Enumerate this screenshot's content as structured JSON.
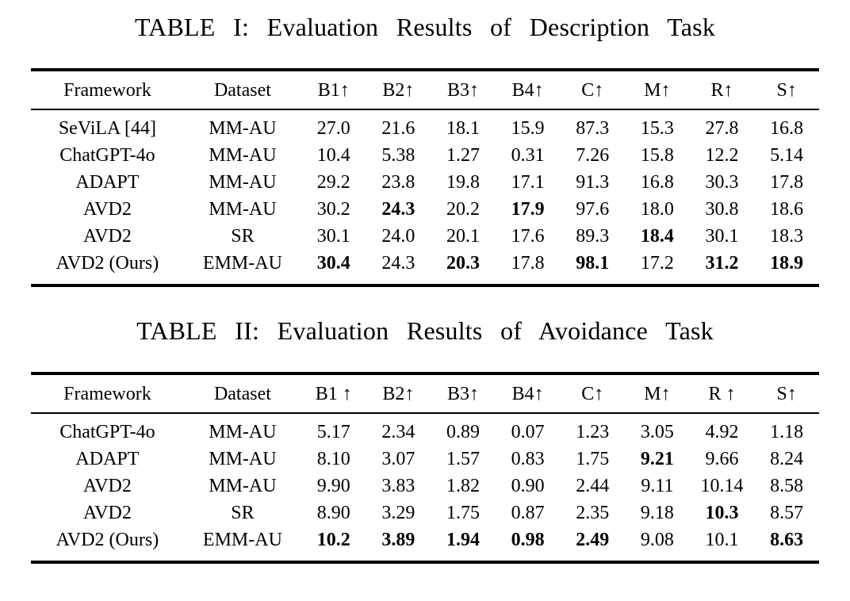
{
  "page": {
    "background_color": "#ffffff",
    "text_color": "#000000"
  },
  "tables": [
    {
      "caption": "TABLE I: Evaluation Results of Description Task",
      "headers": [
        "Framework",
        "Dataset",
        "B1↑",
        "B2↑",
        "B3↑",
        "B4↑",
        "C↑",
        "M↑",
        "R↑",
        "S↑"
      ],
      "rows": [
        [
          "SeViLA [44]",
          "MM-AU",
          "27.0",
          "21.6",
          "18.1",
          "15.9",
          "87.3",
          "15.3",
          "27.8",
          "16.8"
        ],
        [
          "ChatGPT-4o",
          "MM-AU",
          "10.4",
          "5.38",
          "1.27",
          "0.31",
          "7.26",
          "15.8",
          "12.2",
          "5.14"
        ],
        [
          "ADAPT",
          "MM-AU",
          "29.2",
          "23.8",
          "19.8",
          "17.1",
          "91.3",
          "16.8",
          "30.3",
          "17.8"
        ],
        [
          "AVD2",
          "MM-AU",
          "30.2",
          {
            "v": "24.3",
            "b": true
          },
          "20.2",
          {
            "v": "17.9",
            "b": true
          },
          "97.6",
          "18.0",
          "30.8",
          "18.6"
        ],
        [
          "AVD2",
          "SR",
          "30.1",
          "24.0",
          "20.1",
          "17.6",
          "89.3",
          {
            "v": "18.4",
            "b": true
          },
          "30.1",
          "18.3"
        ],
        [
          "AVD2 (Ours)",
          "EMM-AU",
          {
            "v": "30.4",
            "b": true
          },
          "24.3",
          {
            "v": "20.3",
            "b": true
          },
          "17.8",
          {
            "v": "98.1",
            "b": true
          },
          "17.2",
          {
            "v": "31.2",
            "b": true
          },
          {
            "v": "18.9",
            "b": true
          }
        ]
      ]
    },
    {
      "caption": "TABLE II: Evaluation Results of Avoidance Task",
      "headers": [
        "Framework",
        "Dataset",
        "B1 ↑",
        "B2↑",
        "B3↑",
        "B4↑",
        "C↑",
        "M↑",
        "R ↑",
        "S↑"
      ],
      "rows": [
        [
          "ChatGPT-4o",
          "MM-AU",
          "5.17",
          "2.34",
          "0.89",
          "0.07",
          "1.23",
          "3.05",
          "4.92",
          "1.18"
        ],
        [
          "ADAPT",
          "MM-AU",
          "8.10",
          "3.07",
          "1.57",
          "0.83",
          "1.75",
          {
            "v": "9.21",
            "b": true
          },
          "9.66",
          "8.24"
        ],
        [
          "AVD2",
          "MM-AU",
          "9.90",
          "3.83",
          "1.82",
          "0.90",
          "2.44",
          "9.11",
          "10.14",
          "8.58"
        ],
        [
          "AVD2",
          "SR",
          "8.90",
          "3.29",
          "1.75",
          "0.87",
          "2.35",
          "9.18",
          {
            "v": "10.3",
            "b": true
          },
          "8.57"
        ],
        [
          "AVD2 (Ours)",
          "EMM-AU",
          {
            "v": "10.2",
            "b": true
          },
          {
            "v": "3.89",
            "b": true
          },
          {
            "v": "1.94",
            "b": true
          },
          {
            "v": "0.98",
            "b": true
          },
          {
            "v": "2.49",
            "b": true
          },
          "9.08",
          "10.1",
          {
            "v": "8.63",
            "b": true
          }
        ]
      ]
    }
  ]
}
